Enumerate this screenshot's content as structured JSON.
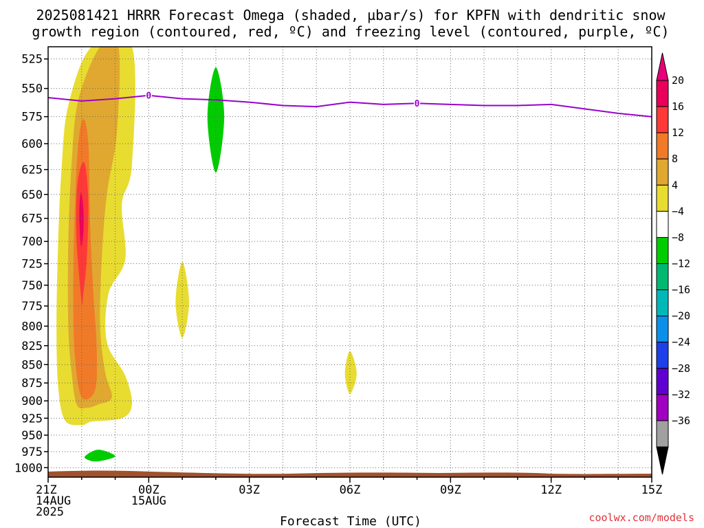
{
  "title_line1": "2025081421 HRRR Forecast Omega (shaded, µbar/s) for KPFN with dendritic snow",
  "title_line2": "growth region (contoured, red, ºC) and freezing level (contoured, purple, ºC)",
  "credit": "coolwx.com/models",
  "chart_data": {
    "type": "contour",
    "xlabel": "Forecast Time (UTC)",
    "ylabel": "",
    "x_range_hours": [
      0,
      18
    ],
    "y_range_hPa": [
      1015,
      515
    ],
    "y_scale": "log-pressure",
    "grid": true,
    "x_ticks": [
      {
        "hour": 0,
        "lines": [
          "21Z",
          "14AUG",
          "2025"
        ]
      },
      {
        "hour": 3,
        "lines": [
          "00Z",
          "15AUG"
        ]
      },
      {
        "hour": 6,
        "lines": [
          "03Z"
        ]
      },
      {
        "hour": 9,
        "lines": [
          "06Z"
        ]
      },
      {
        "hour": 12,
        "lines": [
          "09Z"
        ]
      },
      {
        "hour": 15,
        "lines": [
          "12Z"
        ]
      },
      {
        "hour": 18,
        "lines": [
          "15Z"
        ]
      }
    ],
    "y_ticks": [
      525,
      550,
      575,
      600,
      625,
      650,
      675,
      700,
      725,
      750,
      775,
      800,
      825,
      850,
      875,
      900,
      925,
      950,
      975,
      1000
    ],
    "colorbar": {
      "labels": [
        "20",
        "16",
        "12",
        "8",
        "4",
        "−4",
        "−8",
        "−12",
        "−16",
        "−20",
        "−24",
        "−28",
        "−32",
        "−36"
      ],
      "levels": [
        20,
        16,
        12,
        8,
        4,
        -4,
        -8,
        -12,
        -16,
        -20,
        -24,
        -28,
        -32,
        -36
      ],
      "colors": [
        "#e8005a",
        "#ff3838",
        "#f07a28",
        "#e0a830",
        "#e8dc30",
        "#ffffff",
        "#00cc00",
        "#00b870",
        "#00b8b8",
        "#0a90e8",
        "#1e40e8",
        "#6000d0",
        "#a000c0",
        "#a0a0a0"
      ],
      "top_color": "#e8007a",
      "bottom_color": "#000000"
    },
    "freezing_level": {
      "color": "#9900cc",
      "label": "0",
      "points": [
        [
          0,
          558
        ],
        [
          1,
          561
        ],
        [
          2,
          559
        ],
        [
          3,
          556
        ],
        [
          4,
          559
        ],
        [
          5,
          560
        ],
        [
          6,
          562
        ],
        [
          7,
          565
        ],
        [
          8,
          566
        ],
        [
          9,
          562
        ],
        [
          10,
          564
        ],
        [
          11,
          563
        ],
        [
          12,
          564
        ],
        [
          13,
          565
        ],
        [
          14,
          565
        ],
        [
          15,
          564
        ],
        [
          16,
          568
        ],
        [
          17,
          572
        ],
        [
          18,
          575
        ]
      ],
      "label_points": [
        [
          3,
          556
        ],
        [
          11,
          563
        ]
      ]
    },
    "omega_regions": [
      {
        "value": 4,
        "color": "#e8dc30",
        "points": [
          [
            0.5,
            928
          ],
          [
            0.3,
            880
          ],
          [
            0.25,
            800
          ],
          [
            0.3,
            700
          ],
          [
            0.4,
            625
          ],
          [
            0.6,
            565
          ],
          [
            1.3,
            515
          ],
          [
            2.5,
            515
          ],
          [
            2.5,
            620
          ],
          [
            2.2,
            660
          ],
          [
            2.3,
            720
          ],
          [
            1.8,
            760
          ],
          [
            1.75,
            820
          ],
          [
            2.3,
            865
          ],
          [
            2.5,
            905
          ],
          [
            2.2,
            925
          ],
          [
            1.3,
            930
          ],
          [
            1.0,
            935
          ]
        ]
      },
      {
        "value": 8,
        "color": "#e0a830",
        "points": [
          [
            0.85,
            905
          ],
          [
            0.7,
            860
          ],
          [
            0.6,
            800
          ],
          [
            0.6,
            700
          ],
          [
            0.7,
            620
          ],
          [
            0.9,
            560
          ],
          [
            1.55,
            515
          ],
          [
            2.1,
            515
          ],
          [
            2.05,
            590
          ],
          [
            1.75,
            650
          ],
          [
            1.6,
            720
          ],
          [
            1.55,
            800
          ],
          [
            1.7,
            860
          ],
          [
            1.9,
            895
          ],
          [
            1.5,
            905
          ],
          [
            1.15,
            910
          ]
        ]
      },
      {
        "value": 12,
        "color": "#f07a28",
        "points": [
          [
            1.0,
            895
          ],
          [
            0.8,
            840
          ],
          [
            0.75,
            760
          ],
          [
            0.8,
            660
          ],
          [
            0.9,
            600
          ],
          [
            1.05,
            577
          ],
          [
            1.2,
            600
          ],
          [
            1.25,
            680
          ],
          [
            1.35,
            760
          ],
          [
            1.45,
            830
          ],
          [
            1.4,
            885
          ]
        ]
      },
      {
        "value": 16,
        "color": "#ff3838",
        "points": [
          [
            1.0,
            770
          ],
          [
            0.85,
            700
          ],
          [
            0.85,
            650
          ],
          [
            0.95,
            625
          ],
          [
            1.1,
            620
          ],
          [
            1.2,
            660
          ],
          [
            1.15,
            720
          ],
          [
            1.05,
            760
          ]
        ]
      },
      {
        "value": 20,
        "color": "#e8005a",
        "points": [
          [
            0.98,
            705
          ],
          [
            0.93,
            670
          ],
          [
            0.98,
            648
          ],
          [
            1.05,
            665
          ],
          [
            1.05,
            690
          ]
        ]
      },
      {
        "value": 4,
        "color": "#e8dc30",
        "points": [
          [
            4.0,
            723
          ],
          [
            4.2,
            770
          ],
          [
            4.0,
            815
          ],
          [
            3.8,
            770
          ]
        ]
      },
      {
        "value": 4,
        "color": "#e8dc30",
        "points": [
          [
            9.0,
            832
          ],
          [
            9.2,
            862
          ],
          [
            9.0,
            890
          ],
          [
            8.85,
            862
          ]
        ]
      },
      {
        "value": -8,
        "color": "#00cc00",
        "points": [
          [
            5.0,
            532
          ],
          [
            5.25,
            575
          ],
          [
            5.0,
            628
          ],
          [
            4.75,
            575
          ]
        ]
      },
      {
        "value": -8,
        "color": "#00cc00",
        "points": [
          [
            1.1,
            982
          ],
          [
            1.5,
            972
          ],
          [
            2.0,
            982
          ],
          [
            1.5,
            990
          ],
          [
            1.2,
            988
          ]
        ]
      }
    ],
    "terrain": {
      "color": "#a0522d"
    }
  }
}
